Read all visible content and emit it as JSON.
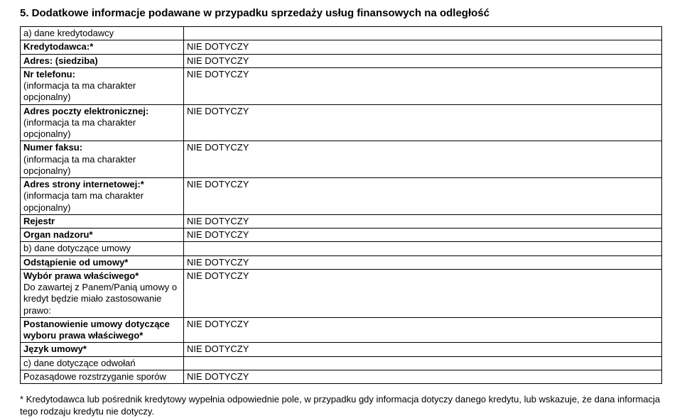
{
  "title": "5. Dodatkowe informacje podawane w przypadku sprzedaży usług finansowych na odległość",
  "NA": "NIE DOTYCZY",
  "rows": {
    "a_header": "a) dane kredytodawcy",
    "r1_label": "Kredytodawca:*",
    "r2_label": "Adres: (siedziba)",
    "r3_label_bold": "Nr telefonu:",
    "r3_label_rest": "(informacja ta ma charakter opcjonalny)",
    "r4_label_bold": "Adres poczty elektronicznej:",
    "r4_label_rest": "(informacja ta ma charakter opcjonalny)",
    "r5_label_bold": "Numer faksu:",
    "r5_label_rest": "(informacja ta ma charakter opcjonalny)",
    "r6_label_bold": "Adres strony internetowej:*",
    "r6_label_rest": "(informacja tam ma charakter opcjonalny)",
    "r7_label": "Rejestr",
    "r8_label": "Organ nadzoru*",
    "b_header": "b) dane dotyczące umowy",
    "r9_label": "Odstąpienie od umowy*",
    "r10_label_bold": "Wybór prawa właściwego*",
    "r10_label_rest": "Do zawartej z Panem/Panią umowy o kredyt będzie miało zastosowanie prawo:",
    "r11_label": "Postanowienie umowy dotyczące wyboru prawa właściwego*",
    "r12_label": "Język umowy*",
    "c_header": "c) dane dotyczące odwołań",
    "r13_label": "Pozasądowe rozstrzyganie sporów"
  },
  "footnote": "* Kredytodawca lub pośrednik kredytowy wypełnia odpowiednie pole, w przypadku gdy informacja dotyczy danego kredytu, lub  wskazuje, że dana informacja tego rodzaju kredytu nie dotyczy."
}
